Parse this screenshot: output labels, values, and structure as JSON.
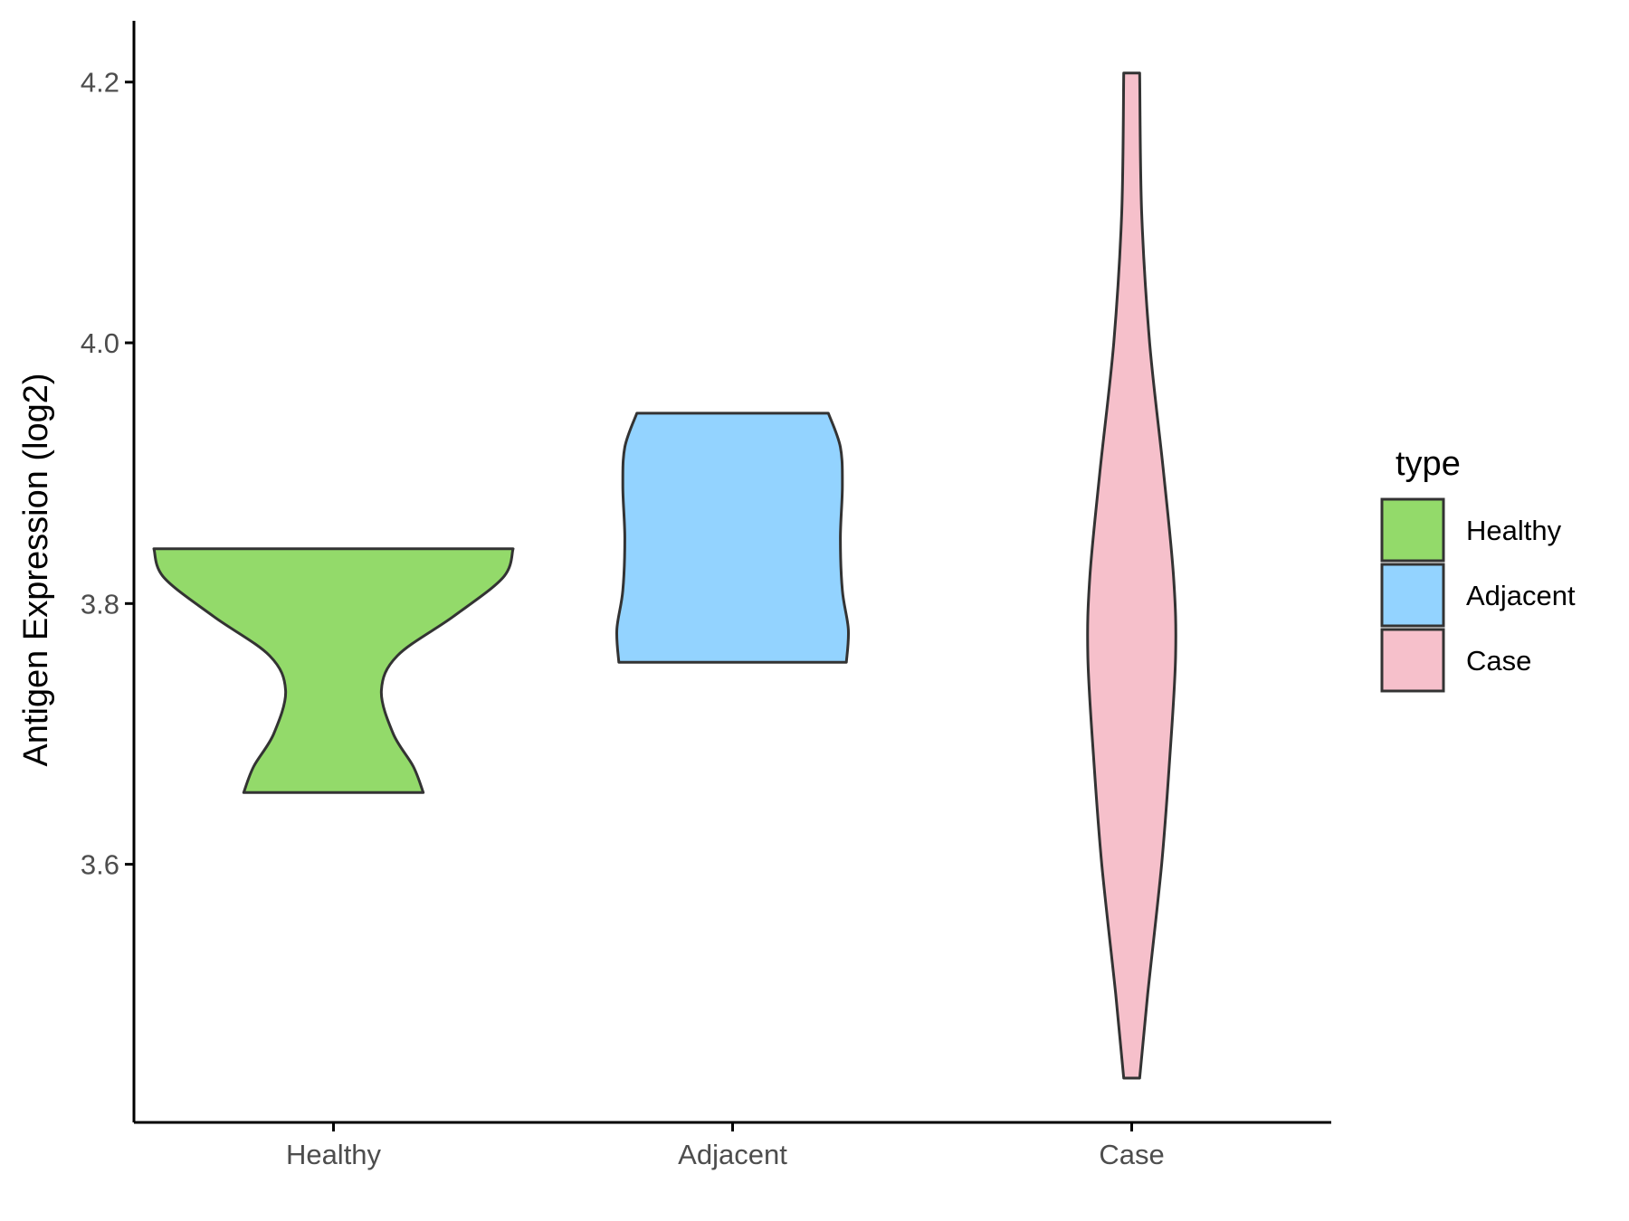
{
  "chart_data": {
    "type": "violin",
    "ylabel": "Antigen Expression (log2)",
    "xlabel": "",
    "categories": [
      "Healthy",
      "Adjacent",
      "Case"
    ],
    "y_ticks": [
      "3.6",
      "3.8",
      "4.0",
      "4.2"
    ],
    "y_tick_values": [
      3.6,
      3.8,
      4.0,
      4.2
    ],
    "ylim": [
      3.402,
      4.247
    ],
    "grid": false,
    "legend": {
      "title": "type",
      "position": "right",
      "entries": [
        "Healthy",
        "Adjacent",
        "Case"
      ]
    },
    "colors": {
      "Healthy": "#93DA6A",
      "Adjacent": "#93D3FF",
      "Case": "#F6C0CB",
      "outline": "#333333"
    },
    "series": [
      {
        "category": "Healthy",
        "min": 3.655,
        "max": 3.842,
        "profile": [
          [
            3.655,
            0.45
          ],
          [
            3.675,
            0.4
          ],
          [
            3.7,
            0.3
          ],
          [
            3.733,
            0.24
          ],
          [
            3.76,
            0.32
          ],
          [
            3.79,
            0.6
          ],
          [
            3.82,
            0.85
          ],
          [
            3.842,
            0.9
          ]
        ]
      },
      {
        "category": "Adjacent",
        "min": 3.755,
        "max": 3.946,
        "profile": [
          [
            3.755,
            0.57
          ],
          [
            3.78,
            0.58
          ],
          [
            3.81,
            0.55
          ],
          [
            3.85,
            0.54
          ],
          [
            3.89,
            0.55
          ],
          [
            3.92,
            0.54
          ],
          [
            3.946,
            0.48
          ]
        ]
      },
      {
        "category": "Case",
        "min": 3.436,
        "max": 4.207,
        "profile": [
          [
            3.436,
            0.04
          ],
          [
            3.5,
            0.08
          ],
          [
            3.6,
            0.15
          ],
          [
            3.68,
            0.19
          ],
          [
            3.76,
            0.22
          ],
          [
            3.82,
            0.21
          ],
          [
            3.9,
            0.16
          ],
          [
            4.0,
            0.09
          ],
          [
            4.1,
            0.05
          ],
          [
            4.207,
            0.04
          ]
        ]
      }
    ]
  }
}
